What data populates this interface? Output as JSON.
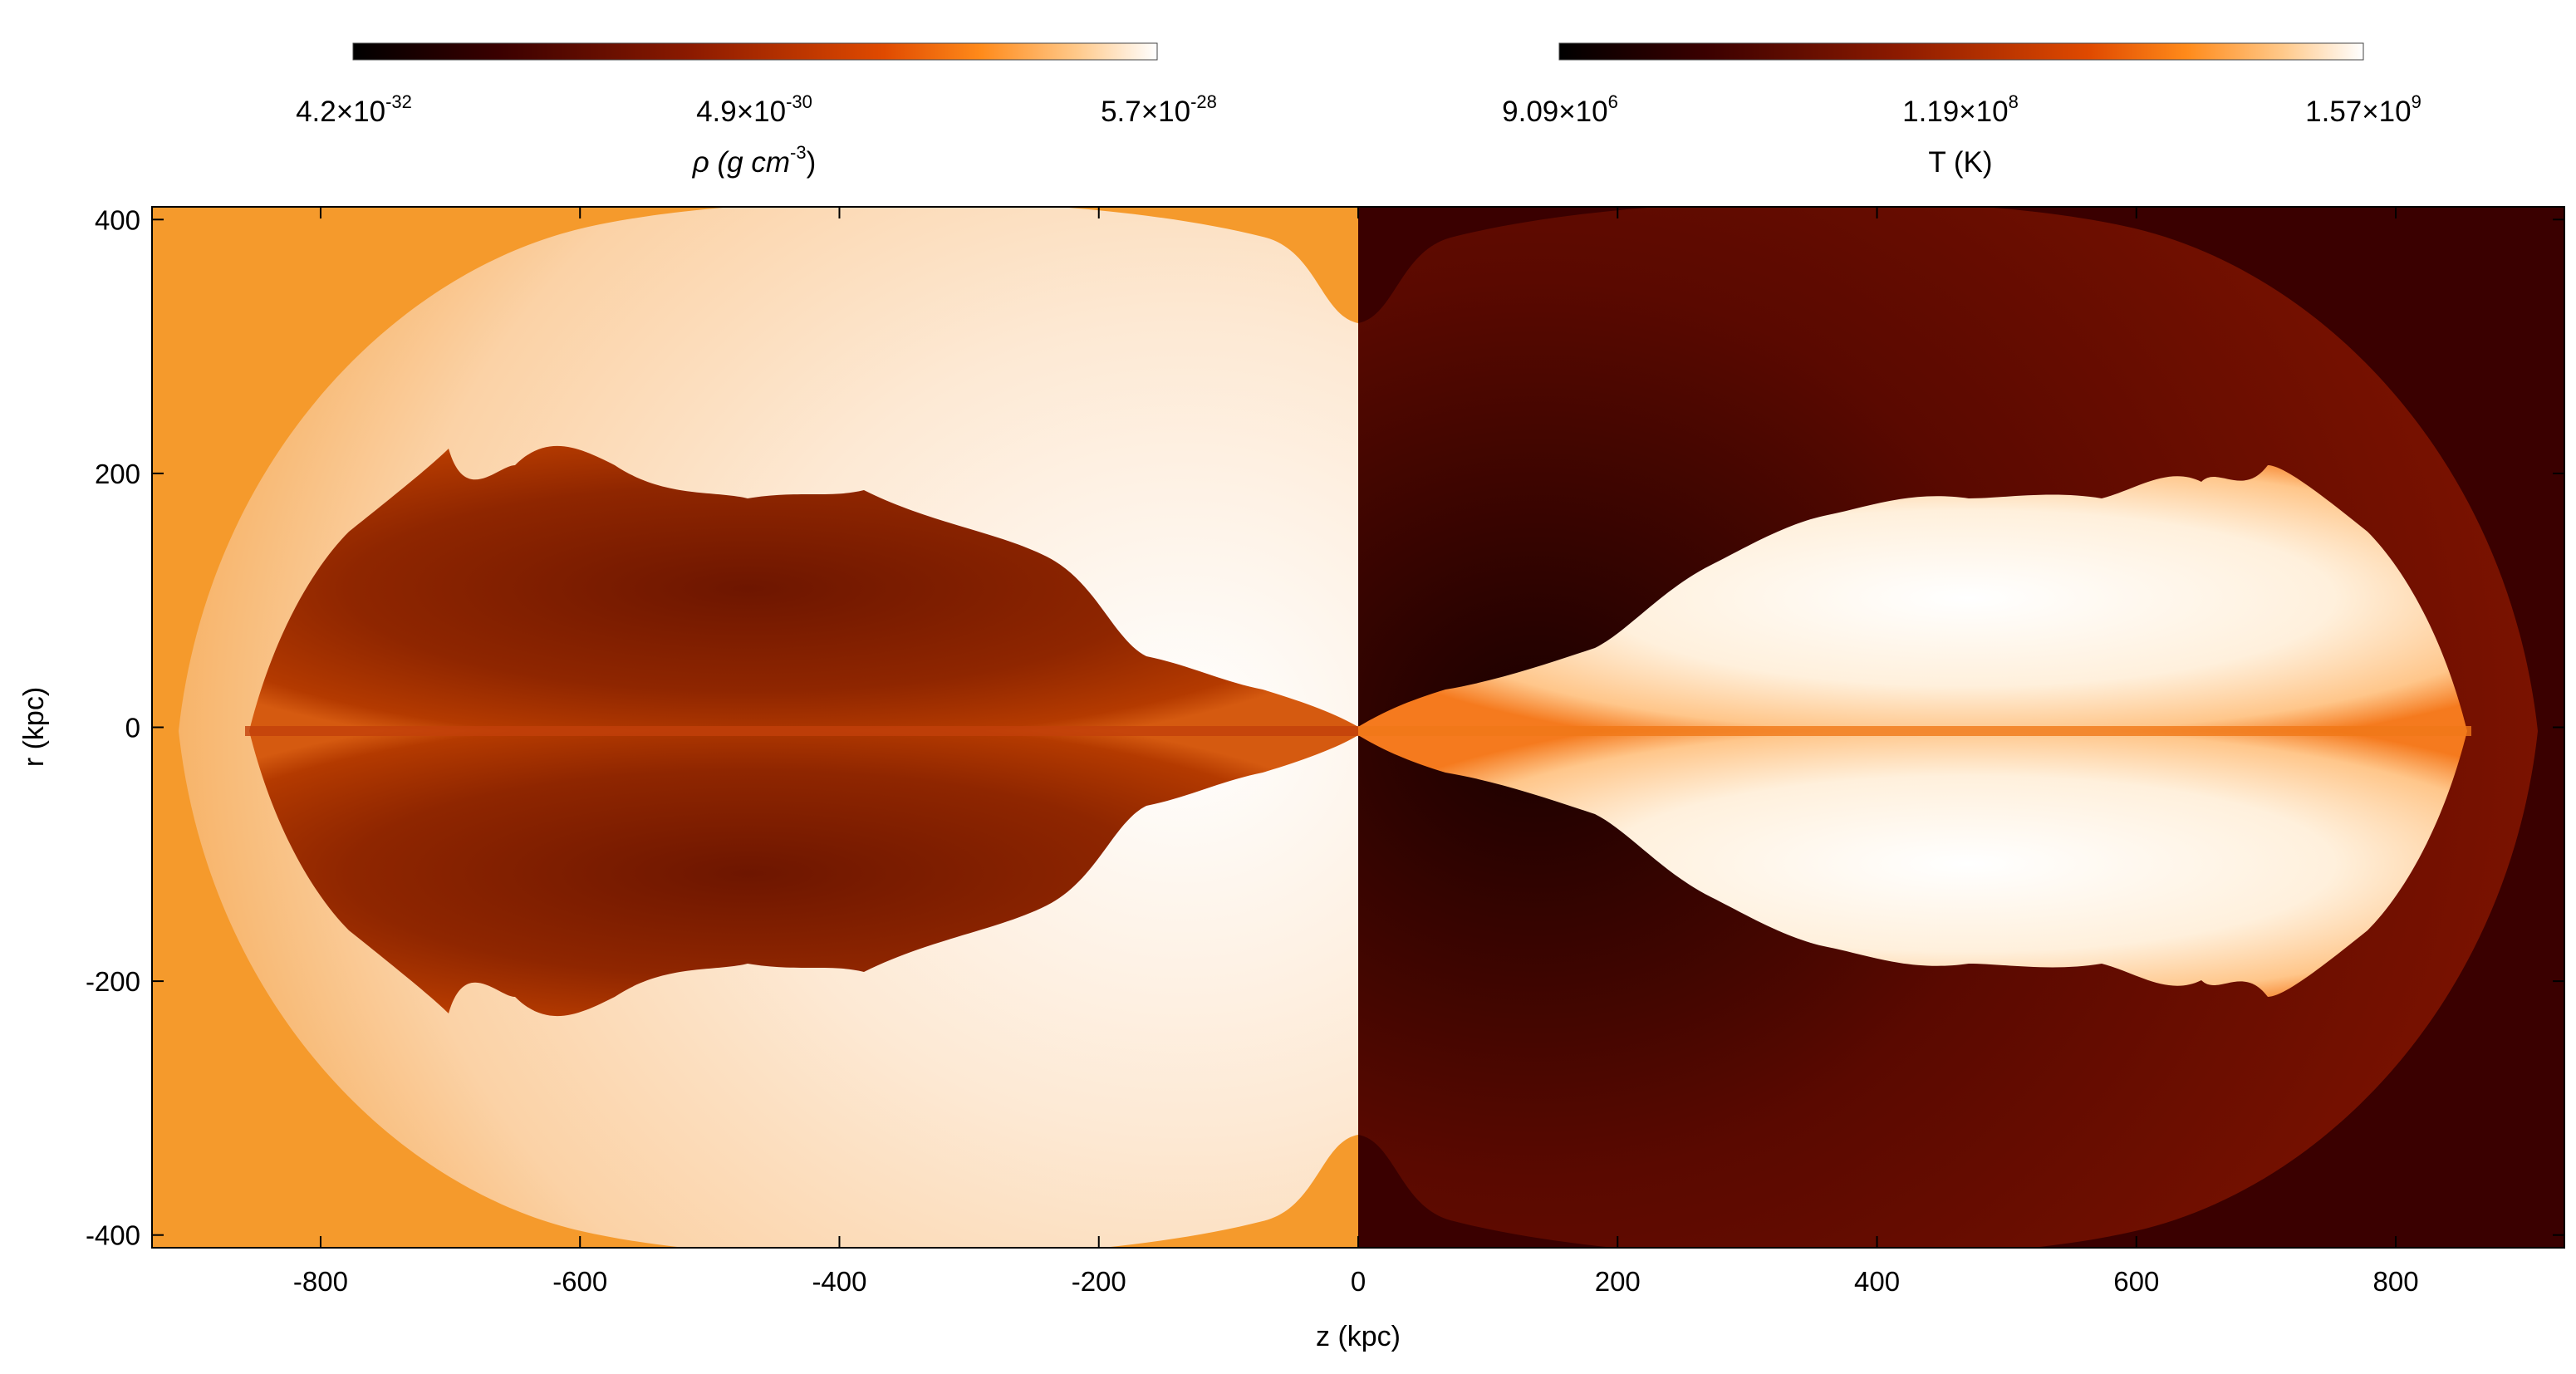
{
  "colorbars": [
    {
      "mantissas": [
        "4.2×10",
        "4.9×10",
        "5.7×10"
      ],
      "exponents": [
        "-32",
        "-30",
        "-28"
      ],
      "title_prefix": "ρ (g cm",
      "title_exponent": "-3",
      "title_suffix": ")"
    },
    {
      "mantissas": [
        "9.09×10",
        "1.19×10",
        "1.57×10"
      ],
      "exponents": [
        "6",
        "8",
        "9"
      ],
      "title": "T (K)"
    }
  ],
  "x_axis": {
    "label": "z (kpc)",
    "ticks": [
      -800,
      -600,
      -400,
      -200,
      0,
      200,
      400,
      600,
      800
    ],
    "range": [
      -930,
      930
    ]
  },
  "y_axis": {
    "label": "r (kpc)",
    "ticks": [
      400,
      200,
      0,
      -200,
      -400
    ],
    "range": [
      -410,
      410
    ]
  },
  "colors": {
    "density_background": "#f59a2c",
    "temperature_background": "#3a0000",
    "inner_cocoon_dark": "#8a2200",
    "inner_cocoon_hot": "#fff2e0"
  }
}
